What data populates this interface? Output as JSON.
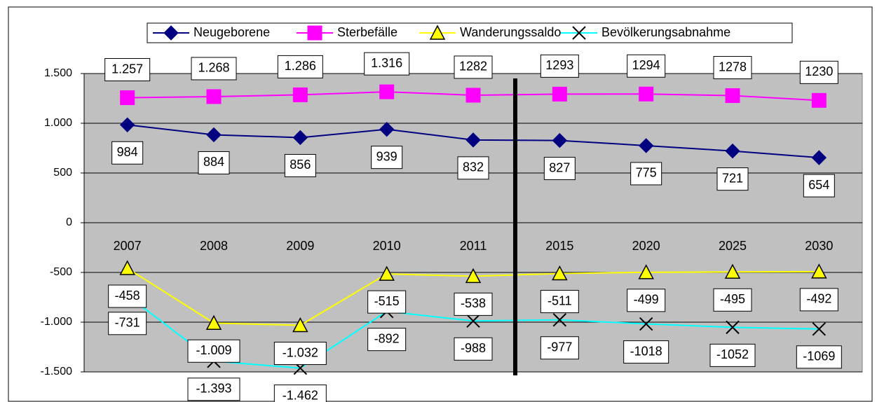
{
  "chart_data": {
    "type": "line",
    "categories": [
      "2007",
      "2008",
      "2009",
      "2010",
      "2011",
      "2015",
      "2020",
      "2025",
      "2030"
    ],
    "ylim": [
      -1500,
      1500
    ],
    "yticks": [
      {
        "value": 1500,
        "label": "1.500"
      },
      {
        "value": 1000,
        "label": "1.000"
      },
      500,
      0,
      -500,
      {
        "value": -1000,
        "label": "-1.000"
      },
      {
        "value": -1500,
        "label": "-1.500"
      }
    ],
    "grid": true,
    "legend": "top",
    "series": [
      {
        "name": "Neugeborene",
        "color": "#000080",
        "marker": "diamond",
        "label_side": "below",
        "values": [
          984,
          884,
          856,
          939,
          832,
          827,
          775,
          721,
          654
        ]
      },
      {
        "name": "Sterbefälle",
        "color": "#ff00ff",
        "marker": "square",
        "label_side": "above",
        "values": [
          1257,
          1268,
          1286,
          1316,
          1282,
          1293,
          1294,
          1278,
          1230
        ],
        "value_labels": [
          "1.257",
          "1.268",
          "1.286",
          "1.316",
          "1282",
          "1293",
          "1294",
          "1278",
          "1230"
        ]
      },
      {
        "name": "Wanderungssaldo",
        "color": "#ffff00",
        "marker": "triangle",
        "label_side": "below",
        "values": [
          -458,
          -1009,
          -1032,
          -515,
          -538,
          -511,
          -499,
          -495,
          -492
        ],
        "value_labels": [
          "-458",
          "-1.009",
          "-1.032",
          "-515",
          "-538",
          "-511",
          "-499",
          "-495",
          "-492"
        ]
      },
      {
        "name": "Bevölkerungsabnahme",
        "color": "#00ffff",
        "marker": "x",
        "label_side": "below",
        "values": [
          -731,
          -1393,
          -1462,
          -892,
          -988,
          -977,
          -1018,
          -1052,
          -1069
        ],
        "value_labels": [
          "-731",
          "-1.393",
          "-1.462",
          "-892",
          "-988",
          "-977",
          "-1018",
          "-1052",
          "-1069"
        ]
      }
    ]
  }
}
